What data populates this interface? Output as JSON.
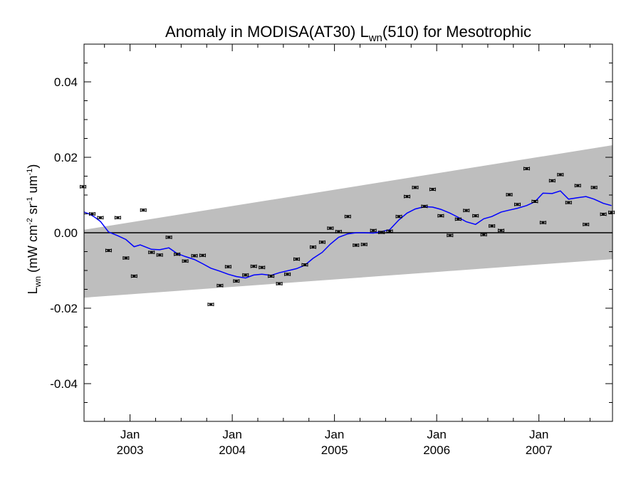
{
  "chart_data": {
    "type": "scatter",
    "title": {
      "prefix": "Anomaly in MODISA(AT30) L",
      "sub": "wn",
      "suffix": "(510) for Mesotrophic"
    },
    "ylabel": {
      "main": "L",
      "sub": "wn",
      "units_open": " (mW cm",
      "sup1": "-2",
      "mid": " sr",
      "sup2": "-1",
      "units_mid2": " um",
      "sup3": "-1",
      "units_close": ")"
    },
    "xlim": [
      2002.55,
      2007.72
    ],
    "ylim": [
      -0.05,
      0.05
    ],
    "y_ticks": [
      {
        "value": -0.04,
        "label": "-0.04"
      },
      {
        "value": -0.02,
        "label": "-0.02"
      },
      {
        "value": 0.0,
        "label": "0.00"
      },
      {
        "value": 0.02,
        "label": "0.02"
      },
      {
        "value": 0.04,
        "label": "0.04"
      }
    ],
    "x_ticks": [
      {
        "value": 2003.0,
        "month": "Jan",
        "year": "2003"
      },
      {
        "value": 2004.0,
        "month": "Jan",
        "year": "2004"
      },
      {
        "value": 2005.0,
        "month": "Jan",
        "year": "2005"
      },
      {
        "value": 2006.0,
        "month": "Jan",
        "year": "2006"
      },
      {
        "value": 2007.0,
        "month": "Jan",
        "year": "2007"
      }
    ],
    "zero_line": 0.0,
    "colors": {
      "band": "#bebebe",
      "smooth": "#0000ff",
      "points": "#000000"
    },
    "band": {
      "x": [
        2002.55,
        2007.72
      ],
      "upper": [
        0.0008,
        0.0232
      ],
      "lower": [
        -0.0172,
        -0.007
      ]
    },
    "monthly_points": {
      "x": [
        2002.54,
        2002.63,
        2002.71,
        2002.79,
        2002.88,
        2002.96,
        2003.04,
        2003.13,
        2003.21,
        2003.29,
        2003.38,
        2003.46,
        2003.54,
        2003.63,
        2003.71,
        2003.79,
        2003.88,
        2003.96,
        2004.04,
        2004.13,
        2004.21,
        2004.29,
        2004.38,
        2004.46,
        2004.54,
        2004.63,
        2004.71,
        2004.79,
        2004.88,
        2004.96,
        2005.04,
        2005.13,
        2005.21,
        2005.29,
        2005.38,
        2005.46,
        2005.54,
        2005.63,
        2005.71,
        2005.79,
        2005.88,
        2005.96,
        2006.04,
        2006.13,
        2006.21,
        2006.29,
        2006.38,
        2006.46,
        2006.54,
        2006.63,
        2006.71,
        2006.79,
        2006.88,
        2006.96,
        2007.04,
        2007.13,
        2007.21,
        2007.29,
        2007.38,
        2007.46,
        2007.54,
        2007.63,
        2007.71
      ],
      "y": [
        0.0122,
        0.005,
        0.004,
        -0.0047,
        0.004,
        -0.0067,
        -0.0115,
        0.006,
        -0.0052,
        -0.0059,
        -0.0012,
        -0.0057,
        -0.0075,
        -0.0061,
        -0.006,
        -0.019,
        -0.014,
        -0.009,
        -0.0128,
        -0.0112,
        -0.0089,
        -0.0092,
        -0.0115,
        -0.0135,
        -0.011,
        -0.007,
        -0.0085,
        -0.0038,
        -0.0025,
        0.0012,
        0.0003,
        0.0043,
        -0.0033,
        -0.0031,
        0.0006,
        0.0001,
        0.0004,
        0.0043,
        0.0096,
        0.012,
        0.007,
        0.0115,
        0.0045,
        -0.0007,
        0.0036,
        0.0059,
        0.0045,
        -0.0005,
        0.0018,
        0.0006,
        0.0101,
        0.0075,
        0.017,
        0.0083,
        0.0027,
        0.0138,
        0.0154,
        0.008,
        0.0125,
        0.0022,
        0.012,
        0.0049,
        0.0054
      ]
    },
    "smooth_series": {
      "x": [
        2002.54,
        2002.6,
        2002.65,
        2002.71,
        2002.79,
        2002.88,
        2002.96,
        2003.04,
        2003.1,
        2003.21,
        2003.29,
        2003.38,
        2003.46,
        2003.54,
        2003.63,
        2003.71,
        2003.79,
        2003.88,
        2003.96,
        2004.04,
        2004.13,
        2004.21,
        2004.29,
        2004.38,
        2004.46,
        2004.54,
        2004.63,
        2004.71,
        2004.79,
        2004.88,
        2004.96,
        2005.04,
        2005.13,
        2005.21,
        2005.29,
        2005.38,
        2005.46,
        2005.54,
        2005.63,
        2005.71,
        2005.79,
        2005.88,
        2005.96,
        2006.04,
        2006.13,
        2006.21,
        2006.29,
        2006.38,
        2006.46,
        2006.54,
        2006.63,
        2006.71,
        2006.79,
        2006.88,
        2006.96,
        2007.04,
        2007.13,
        2007.21,
        2007.29,
        2007.38,
        2007.46,
        2007.54,
        2007.63,
        2007.71
      ],
      "y": [
        0.0055,
        0.005,
        0.0042,
        0.003,
        0.0002,
        -0.0008,
        -0.0018,
        -0.0037,
        -0.0032,
        -0.0044,
        -0.0045,
        -0.004,
        -0.0055,
        -0.0063,
        -0.0071,
        -0.0082,
        -0.0094,
        -0.0102,
        -0.011,
        -0.0116,
        -0.012,
        -0.0112,
        -0.011,
        -0.0113,
        -0.0106,
        -0.0101,
        -0.0095,
        -0.0086,
        -0.0068,
        -0.0052,
        -0.003,
        -0.0012,
        -0.0003,
        0.0,
        0.0,
        -0.0001,
        0.0003,
        0.0008,
        0.0034,
        0.0052,
        0.0063,
        0.0069,
        0.0068,
        0.0062,
        0.0052,
        0.0041,
        0.0029,
        0.0022,
        0.0037,
        0.0043,
        0.0055,
        0.006,
        0.0065,
        0.0072,
        0.0082,
        0.0105,
        0.0104,
        0.0111,
        0.0089,
        0.0093,
        0.0096,
        0.0089,
        0.0078,
        0.0072
      ]
    }
  }
}
